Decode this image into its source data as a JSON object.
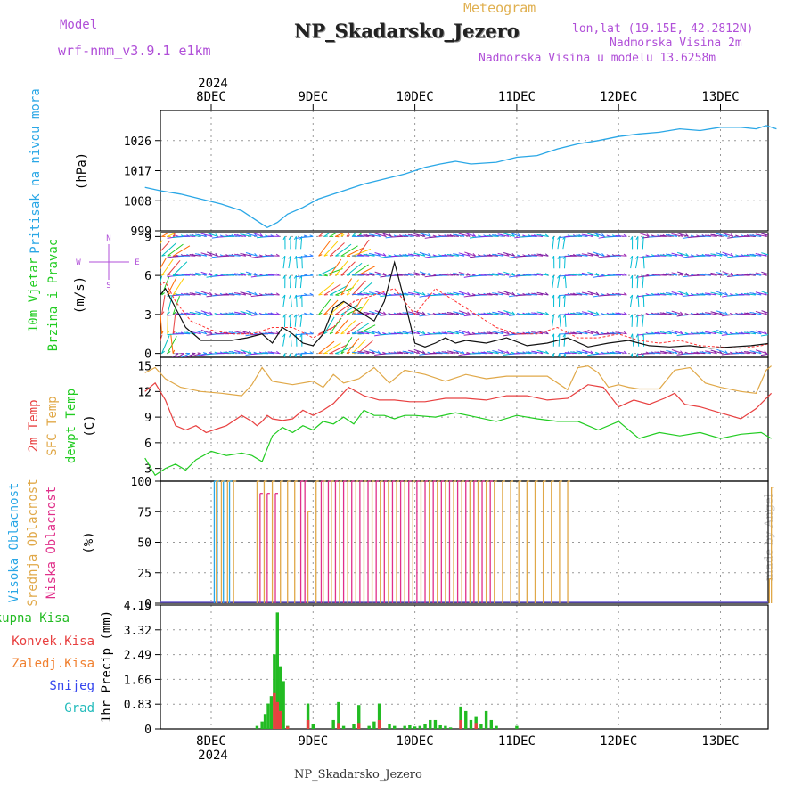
{
  "header": {
    "model_label": "Model",
    "model_value": "wrf-nmm_v3.9.1 e1km",
    "meteogram_label": "Meteogram",
    "station": "NP_Skadarsko_Jezero",
    "lonlat": "lon,lat (19.15E, 42.2812N)",
    "altitude": "Nadmorska Visina 2m",
    "model_altitude": "Nadmorska Visina u modelu 13.6258m",
    "footer_station": "NP_Skadarsko_Jezero",
    "watermark": "made by Angel",
    "year_top": "2024",
    "year_bottom": "2024"
  },
  "colors": {
    "pressure": "#2aa7e6",
    "temp2m": "#e84040",
    "sfc": "#e0a848",
    "dewpt": "#22cc22",
    "high_cloud": "#2aa7e6",
    "mid_cloud": "#e0a848",
    "low_cloud": "#e0308a",
    "total_precip": "#22bb22",
    "conv_precip": "#e84040",
    "frozen": "#f08030",
    "snow": "#3344ee",
    "graupel": "#22bbbb",
    "wind_speed": "#111111",
    "wind_gust": "#ff3333"
  },
  "chart_data": [
    {
      "type": "line",
      "ylabel_lines": [
        "Pritisak na nivou mora",
        "(hPa)"
      ],
      "categories": [
        "8DEC",
        "9DEC",
        "10DEC",
        "11DEC",
        "12DEC",
        "13DEC"
      ],
      "ylim": [
        999,
        1035
      ],
      "yticks": [
        "999",
        "1008",
        "1017",
        "1026"
      ],
      "grid": true,
      "series": [
        {
          "x": [
            -0.65,
            -0.5,
            -0.3,
            -0.1,
            0.1,
            0.3,
            0.45,
            0.55,
            0.65,
            0.75,
            0.9,
            1.05,
            1.3,
            1.5,
            1.7,
            1.9,
            2.1,
            2.25,
            2.4,
            2.55,
            2.8,
            3.0,
            3.2,
            3.4,
            3.6,
            3.8,
            4.0,
            4.2,
            4.4,
            4.6,
            4.8,
            5.0,
            5.2,
            5.35,
            5.45,
            5.55
          ],
          "y": [
            1012,
            1011,
            1010,
            1008.5,
            1007,
            1005,
            1002,
            1000,
            1001.5,
            1004,
            1006,
            1008.5,
            1011,
            1013,
            1014.5,
            1016,
            1018,
            1019,
            1019.8,
            1019,
            1019.5,
            1021,
            1021.5,
            1023.5,
            1025,
            1026,
            1027.2,
            1028,
            1028.5,
            1029.5,
            1029,
            1030,
            1030,
            1029.5,
            1030.5,
            1029.5
          ]
        }
      ]
    },
    {
      "type": "line",
      "ylabel_lines": [
        "10m Vjetar",
        "Brzina i Pravac",
        "(m/s)"
      ],
      "compass": [
        "N",
        "W",
        "E",
        "S"
      ],
      "ylim": [
        -0.3,
        9.3
      ],
      "yticks": [
        "0",
        "3",
        "6",
        "9"
      ],
      "grid": true,
      "series": [
        {
          "name": "wind_speed",
          "x": [
            -0.65,
            -0.55,
            -0.45,
            -0.35,
            -0.25,
            -0.1,
            0.05,
            0.2,
            0.35,
            0.5,
            0.6,
            0.7,
            0.8,
            0.9,
            1.0,
            1.1,
            1.2,
            1.3,
            1.4,
            1.5,
            1.6,
            1.7,
            1.8,
            1.9,
            2.0,
            2.1,
            2.2,
            2.3,
            2.4,
            2.5,
            2.7,
            2.9,
            3.1,
            3.3,
            3.5,
            3.7,
            3.9,
            4.1,
            4.3,
            4.5,
            4.7,
            4.9,
            5.1,
            5.3,
            5.5
          ],
          "y": [
            0.5,
            4,
            5,
            3.5,
            2,
            1,
            1,
            1,
            1.2,
            1.5,
            0.8,
            2,
            1.5,
            0.8,
            0.6,
            1.5,
            3.5,
            4,
            3.5,
            3,
            2.5,
            4,
            7,
            4,
            0.8,
            0.5,
            0.8,
            1.2,
            0.8,
            1,
            0.8,
            1.2,
            0.6,
            0.8,
            1.2,
            0.5,
            0.8,
            1,
            0.6,
            0.5,
            0.6,
            0.4,
            0.5,
            0.6,
            0.8
          ]
        },
        {
          "name": "wind_gust",
          "x": [
            -0.65,
            -0.55,
            -0.45,
            -0.35,
            -0.2,
            0,
            0.2,
            0.4,
            0.6,
            0.8,
            1.0,
            1.2,
            1.4,
            1.6,
            1.8,
            2.0,
            2.2,
            2.4,
            2.6,
            2.8,
            3.0,
            3.2,
            3.4,
            3.6,
            3.8,
            4.0,
            4.2,
            4.4,
            4.6,
            4.8,
            5.0,
            5.2,
            5.4,
            5.5
          ],
          "y": [
            1,
            5,
            5.5,
            4,
            2.5,
            1.8,
            1.5,
            1.5,
            2,
            2,
            1.2,
            2,
            4,
            4.5,
            5,
            3,
            5,
            4,
            3,
            2,
            1.5,
            1.5,
            2,
            1.2,
            1.2,
            1.5,
            1,
            0.8,
            1,
            0.6,
            0.5,
            0.4,
            0.6,
            0.8
          ]
        }
      ]
    },
    {
      "type": "line",
      "ylabel_lines": [
        "2m Temp",
        "SFC Temp",
        "dewpt Temp",
        "(C)"
      ],
      "ylim": [
        1.5,
        16
      ],
      "yticks": [
        "3",
        "6",
        "9",
        "12",
        "15"
      ],
      "grid": true,
      "series": [
        {
          "name": "2m Temp",
          "x": [
            -0.65,
            -0.55,
            -0.45,
            -0.35,
            -0.25,
            -0.15,
            -0.05,
            0.05,
            0.15,
            0.3,
            0.4,
            0.45,
            0.5,
            0.55,
            0.6,
            0.7,
            0.8,
            0.9,
            1.0,
            1.1,
            1.2,
            1.35,
            1.5,
            1.65,
            1.8,
            1.95,
            2.1,
            2.3,
            2.5,
            2.7,
            2.9,
            3.1,
            3.3,
            3.5,
            3.7,
            3.85,
            4.0,
            4.15,
            4.3,
            4.45,
            4.55,
            4.65,
            4.8,
            5.0,
            5.2,
            5.35,
            5.5
          ],
          "y": [
            12,
            13,
            11,
            8,
            7.5,
            8,
            7.2,
            7.6,
            8,
            9.2,
            8.5,
            8,
            8.5,
            9.2,
            8.8,
            8.6,
            8.8,
            9.8,
            9.2,
            9.8,
            10.6,
            12.5,
            11.5,
            11,
            11,
            10.8,
            10.8,
            11.2,
            11.2,
            11,
            11.5,
            11.5,
            11,
            11.2,
            12.8,
            12.5,
            10.2,
            11,
            10.5,
            11.2,
            11.8,
            10.5,
            10.2,
            9.5,
            8.8,
            10,
            11.8
          ]
        },
        {
          "name": "SFC Temp",
          "x": [
            -0.65,
            -0.55,
            -0.45,
            -0.3,
            -0.1,
            0.1,
            0.3,
            0.4,
            0.5,
            0.6,
            0.8,
            1.0,
            1.1,
            1.2,
            1.3,
            1.45,
            1.6,
            1.75,
            1.9,
            2.1,
            2.3,
            2.5,
            2.7,
            2.9,
            3.1,
            3.3,
            3.5,
            3.6,
            3.7,
            3.8,
            3.9,
            4.0,
            4.1,
            4.2,
            4.4,
            4.55,
            4.7,
            4.85,
            5.0,
            5.2,
            5.35,
            5.45,
            5.5
          ],
          "y": [
            14.2,
            14.8,
            13.5,
            12.5,
            12,
            11.8,
            11.5,
            12.8,
            14.8,
            13.2,
            12.8,
            13.2,
            12.5,
            14,
            13,
            13.5,
            14.8,
            13,
            14.5,
            14,
            13.2,
            14,
            13.5,
            13.8,
            13.8,
            13.8,
            12.2,
            14.8,
            15,
            14.2,
            12.5,
            12.8,
            12.5,
            12.3,
            12.3,
            14.5,
            14.8,
            13,
            12.5,
            12,
            11.8,
            14.5,
            15
          ]
        },
        {
          "name": "dewpt Temp",
          "x": [
            -0.65,
            -0.55,
            -0.45,
            -0.35,
            -0.25,
            -0.15,
            0,
            0.15,
            0.3,
            0.4,
            0.5,
            0.6,
            0.7,
            0.8,
            0.9,
            1.0,
            1.1,
            1.2,
            1.3,
            1.4,
            1.5,
            1.6,
            1.7,
            1.8,
            1.9,
            2.0,
            2.2,
            2.4,
            2.6,
            2.8,
            3.0,
            3.2,
            3.4,
            3.6,
            3.8,
            4.0,
            4.2,
            4.4,
            4.6,
            4.8,
            5.0,
            5.2,
            5.4,
            5.5
          ],
          "y": [
            4.2,
            2.2,
            3,
            3.5,
            2.8,
            4,
            5,
            4.5,
            4.8,
            4.5,
            3.8,
            6.8,
            7.8,
            7.2,
            8,
            7.5,
            8.5,
            8.2,
            9,
            8.2,
            9.8,
            9.2,
            9.2,
            8.8,
            9.2,
            9.2,
            9,
            9.5,
            9,
            8.5,
            9.2,
            8.8,
            8.5,
            8.5,
            7.5,
            8.5,
            6.5,
            7.2,
            6.8,
            7.2,
            6.5,
            7,
            7.2,
            6.5
          ]
        }
      ]
    },
    {
      "type": "bar",
      "ylabel_lines": [
        "Visoka Oblacnost",
        "Srednja Oblacnost",
        "Niska Oblacnost",
        "(%)"
      ],
      "ylim": [
        0,
        100
      ],
      "yticks": [
        "0",
        "25",
        "50",
        "75",
        "100"
      ],
      "grid": true,
      "series": [
        {
          "name": "Visoka Oblacnost",
          "x": [
            0.03,
            0.06,
            0.12,
            0.18
          ],
          "values": [
            100,
            100,
            100,
            100
          ]
        },
        {
          "name": "Srednja Oblacnost",
          "x": [
            0.05,
            0.1,
            0.16,
            0.22,
            0.45,
            0.52,
            0.6,
            0.68,
            0.75,
            0.82,
            0.95,
            1.03,
            1.1,
            1.18,
            1.26,
            1.34,
            1.42,
            1.5,
            1.58,
            1.66,
            1.74,
            1.82,
            1.9,
            1.98,
            2.06,
            2.14,
            2.22,
            2.3,
            2.38,
            2.46,
            2.54,
            2.62,
            2.7,
            2.78,
            2.86,
            2.94,
            3.02,
            3.1,
            3.18,
            3.26,
            3.34,
            3.42,
            3.5,
            5.48,
            5.5
          ],
          "values": [
            100,
            100,
            100,
            100,
            100,
            100,
            100,
            100,
            100,
            100,
            75,
            100,
            100,
            100,
            100,
            100,
            100,
            100,
            100,
            100,
            100,
            100,
            100,
            100,
            100,
            100,
            100,
            100,
            100,
            100,
            100,
            100,
            100,
            100,
            100,
            100,
            100,
            100,
            100,
            100,
            100,
            100,
            100,
            20,
            95
          ]
        },
        {
          "name": "Niska Oblacnost",
          "x": [
            0.48,
            0.55,
            0.63,
            0.88,
            0.92,
            1.08,
            1.15,
            1.22,
            1.3,
            1.38,
            1.46,
            1.54,
            1.62,
            1.7,
            1.78,
            1.86,
            1.94,
            2.02,
            2.1,
            2.18,
            2.26,
            2.34,
            2.42,
            2.5,
            2.58,
            2.66,
            2.74
          ],
          "values": [
            90,
            90,
            90,
            100,
            100,
            100,
            100,
            100,
            100,
            100,
            100,
            100,
            100,
            100,
            100,
            100,
            100,
            100,
            100,
            100,
            100,
            100,
            100,
            100,
            100,
            100,
            100
          ]
        }
      ]
    },
    {
      "type": "bar",
      "ylabel_lines": [
        "Ukupna Kisa",
        "Konvek.Kisa",
        "Zaledj.Kisa",
        "Snijeg",
        "Grad",
        "1hr Precip (mm)"
      ],
      "ylim": [
        0,
        4.15
      ],
      "yticks": [
        "0",
        "0.83",
        "1.66",
        "2.49",
        "3.32",
        "4.15"
      ],
      "categories": [
        "8DEC",
        "9DEC",
        "10DEC",
        "11DEC",
        "12DEC",
        "13DEC"
      ],
      "grid": true,
      "series": [
        {
          "name": "Ukupna Kisa",
          "x": [
            0.45,
            0.5,
            0.53,
            0.56,
            0.59,
            0.62,
            0.65,
            0.68,
            0.71,
            0.75,
            0.95,
            1.0,
            1.2,
            1.25,
            1.3,
            1.4,
            1.45,
            1.55,
            1.6,
            1.65,
            1.75,
            1.8,
            1.9,
            1.95,
            2.0,
            2.05,
            2.1,
            2.15,
            2.2,
            2.25,
            2.3,
            2.35,
            2.45,
            2.5,
            2.55,
            2.6,
            2.65,
            2.7,
            2.75,
            2.8,
            3.0
          ],
          "values": [
            0.1,
            0.25,
            0.5,
            0.85,
            1.1,
            2.5,
            3.9,
            2.1,
            1.6,
            0.1,
            0.85,
            0.15,
            0.3,
            0.9,
            0.1,
            0.15,
            0.8,
            0.1,
            0.25,
            0.85,
            0.15,
            0.1,
            0.1,
            0.12,
            0.08,
            0.1,
            0.15,
            0.3,
            0.3,
            0.12,
            0.1,
            0.05,
            0.75,
            0.6,
            0.3,
            0.4,
            0.15,
            0.6,
            0.3,
            0.1,
            0.1
          ]
        },
        {
          "name": "Konvek.Kisa",
          "x": [
            0.62,
            0.65,
            0.68,
            0.75,
            0.95,
            1.25,
            1.45,
            1.65,
            2.45,
            2.6
          ],
          "values": [
            1.2,
            0.9,
            0.6,
            0.08,
            0.3,
            0.2,
            0.2,
            0.3,
            0.3,
            0.2
          ]
        }
      ]
    }
  ]
}
